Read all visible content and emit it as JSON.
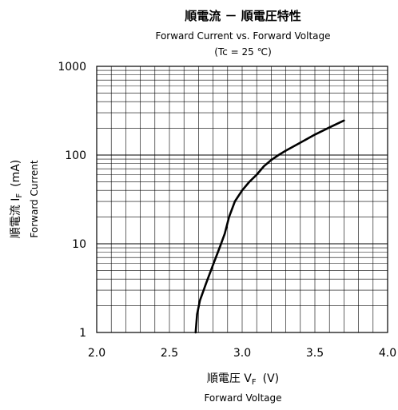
{
  "chart_data": {
    "type": "line",
    "title": "順電流 － 順電圧特性",
    "subtitle": "Forward Current vs. Forward Voltage",
    "condition": "(Tc = 25 ℃)",
    "xlabel": "順電圧 V",
    "xlabel_subscript": "F",
    "xlabel_unit": "(V)",
    "xlabel_en": "Forward Voltage",
    "ylabel": "順電流 I",
    "ylabel_subscript": "F",
    "ylabel_unit": "(mA)",
    "ylabel_en": "Forward Current",
    "xlim": [
      2.0,
      4.0
    ],
    "ylim": [
      1,
      1000
    ],
    "yscale": "log",
    "xticks": [
      "2.0",
      "2.5",
      "3.0",
      "3.5",
      "4.0"
    ],
    "yticks": [
      "1",
      "10",
      "100",
      "1000"
    ],
    "grid": true,
    "series": [
      {
        "x": [
          2.68,
          2.69,
          2.71,
          2.75,
          2.8,
          2.85,
          2.88,
          2.91,
          2.95,
          3.0,
          3.05,
          3.1,
          3.15,
          3.2,
          3.25,
          3.3,
          3.4,
          3.5,
          3.6,
          3.7
        ],
        "y": [
          1.0,
          1.6,
          2.3,
          3.5,
          5.8,
          9.5,
          13,
          20,
          30,
          40,
          50,
          60,
          75,
          88,
          100,
          112,
          138,
          170,
          205,
          245
        ]
      }
    ]
  }
}
